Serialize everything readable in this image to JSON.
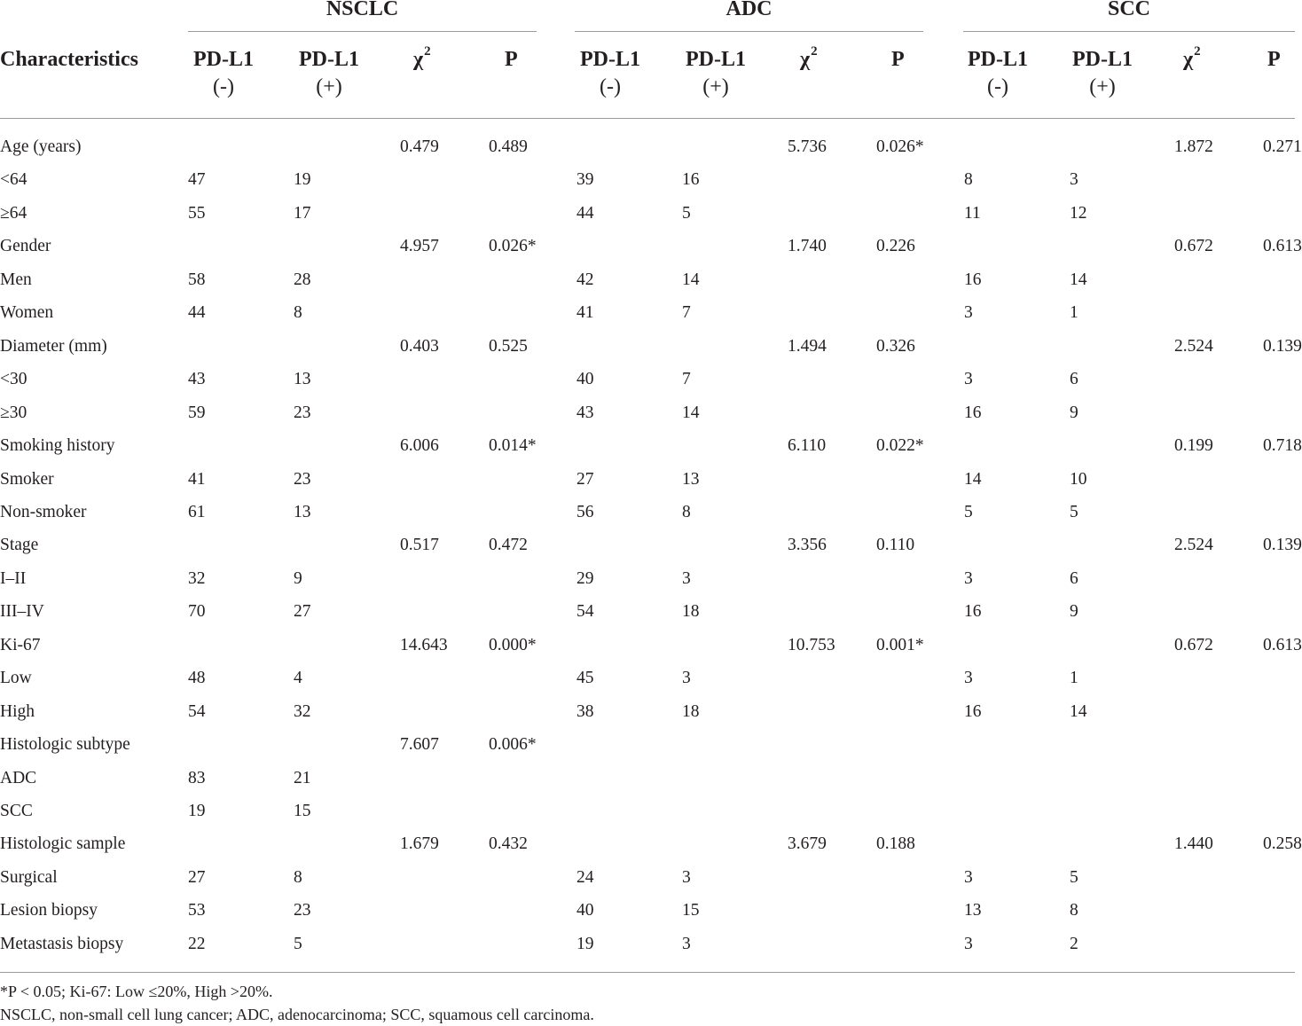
{
  "groups": [
    {
      "label": "NSCLC"
    },
    {
      "label": "ADC"
    },
    {
      "label": "SCC"
    }
  ],
  "header": {
    "characteristics": "Characteristics",
    "pdl1": "PD-L1",
    "neg": "(-)",
    "pos": "(+)",
    "chi": "χ",
    "chi_sup": "2",
    "p": "P"
  },
  "rows": [
    {
      "label": "Age (years)",
      "cells": [
        "",
        "",
        "0.479",
        "0.489",
        "",
        "",
        "5.736",
        "0.026*",
        "",
        "",
        "1.872",
        "0.271"
      ]
    },
    {
      "label": "<64",
      "cells": [
        "47",
        "19",
        "",
        "",
        "39",
        "16",
        "",
        "",
        "8",
        "3",
        "",
        ""
      ]
    },
    {
      "label": "≥64",
      "cells": [
        "55",
        "17",
        "",
        "",
        "44",
        "5",
        "",
        "",
        "11",
        "12",
        "",
        ""
      ]
    },
    {
      "label": "Gender",
      "cells": [
        "",
        "",
        "4.957",
        "0.026*",
        "",
        "",
        "1.740",
        "0.226",
        "",
        "",
        "0.672",
        "0.613"
      ]
    },
    {
      "label": "Men",
      "cells": [
        "58",
        "28",
        "",
        "",
        "42",
        "14",
        "",
        "",
        "16",
        "14",
        "",
        ""
      ]
    },
    {
      "label": "Women",
      "cells": [
        "44",
        "8",
        "",
        "",
        "41",
        "7",
        "",
        "",
        "3",
        "1",
        "",
        ""
      ]
    },
    {
      "label": "Diameter (mm)",
      "cells": [
        "",
        "",
        "0.403",
        "0.525",
        "",
        "",
        "1.494",
        "0.326",
        "",
        "",
        "2.524",
        "0.139"
      ]
    },
    {
      "label": "<30",
      "cells": [
        "43",
        "13",
        "",
        "",
        "40",
        "7",
        "",
        "",
        "3",
        "6",
        "",
        ""
      ]
    },
    {
      "label": "≥30",
      "cells": [
        "59",
        "23",
        "",
        "",
        "43",
        "14",
        "",
        "",
        "16",
        "9",
        "",
        ""
      ]
    },
    {
      "label": "Smoking history",
      "cells": [
        "",
        "",
        "6.006",
        "0.014*",
        "",
        "",
        "6.110",
        "0.022*",
        "",
        "",
        "0.199",
        "0.718"
      ]
    },
    {
      "label": "Smoker",
      "cells": [
        "41",
        "23",
        "",
        "",
        "27",
        "13",
        "",
        "",
        "14",
        "10",
        "",
        ""
      ]
    },
    {
      "label": "Non-smoker",
      "cells": [
        "61",
        "13",
        "",
        "",
        "56",
        "8",
        "",
        "",
        "5",
        "5",
        "",
        ""
      ]
    },
    {
      "label": "Stage",
      "cells": [
        "",
        "",
        "0.517",
        "0.472",
        "",
        "",
        "3.356",
        "0.110",
        "",
        "",
        "2.524",
        "0.139"
      ]
    },
    {
      "label": "I–II",
      "cells": [
        "32",
        "9",
        "",
        "",
        "29",
        "3",
        "",
        "",
        "3",
        "6",
        "",
        ""
      ]
    },
    {
      "label": "III–IV",
      "cells": [
        "70",
        "27",
        "",
        "",
        "54",
        "18",
        "",
        "",
        "16",
        "9",
        "",
        ""
      ]
    },
    {
      "label": "Ki-67",
      "cells": [
        "",
        "",
        "14.643",
        "0.000*",
        "",
        "",
        "10.753",
        "0.001*",
        "",
        "",
        "0.672",
        "0.613"
      ]
    },
    {
      "label": "Low",
      "cells": [
        "48",
        "4",
        "",
        "",
        "45",
        "3",
        "",
        "",
        "3",
        "1",
        "",
        ""
      ]
    },
    {
      "label": "High",
      "cells": [
        "54",
        "32",
        "",
        "",
        "38",
        "18",
        "",
        "",
        "16",
        "14",
        "",
        ""
      ]
    },
    {
      "label": "Histologic subtype",
      "cells": [
        "",
        "",
        "7.607",
        "0.006*",
        "",
        "",
        "",
        "",
        "",
        "",
        "",
        ""
      ]
    },
    {
      "label": "ADC",
      "cells": [
        "83",
        "21",
        "",
        "",
        "",
        "",
        "",
        "",
        "",
        "",
        "",
        ""
      ]
    },
    {
      "label": "SCC",
      "cells": [
        "19",
        "15",
        "",
        "",
        "",
        "",
        "",
        "",
        "",
        "",
        "",
        ""
      ]
    },
    {
      "label": "Histologic sample",
      "cells": [
        "",
        "",
        "1.679",
        "0.432",
        "",
        "",
        "3.679",
        "0.188",
        "",
        "",
        "1.440",
        "0.258"
      ]
    },
    {
      "label": "Surgical",
      "cells": [
        "27",
        "8",
        "",
        "",
        "24",
        "3",
        "",
        "",
        "3",
        "5",
        "",
        ""
      ]
    },
    {
      "label": "Lesion biopsy",
      "cells": [
        "53",
        "23",
        "",
        "",
        "40",
        "15",
        "",
        "",
        "13",
        "8",
        "",
        ""
      ]
    },
    {
      "label": "Metastasis biopsy",
      "cells": [
        "22",
        "5",
        "",
        "",
        "19",
        "3",
        "",
        "",
        "3",
        "2",
        "",
        ""
      ]
    }
  ],
  "footnotes": [
    "*P < 0.05; Ki-67: Low ≤20%, High >20%.",
    "NSCLC, non-small cell lung cancer; ADC, adenocarcinoma; SCC, squamous cell carcinoma."
  ]
}
